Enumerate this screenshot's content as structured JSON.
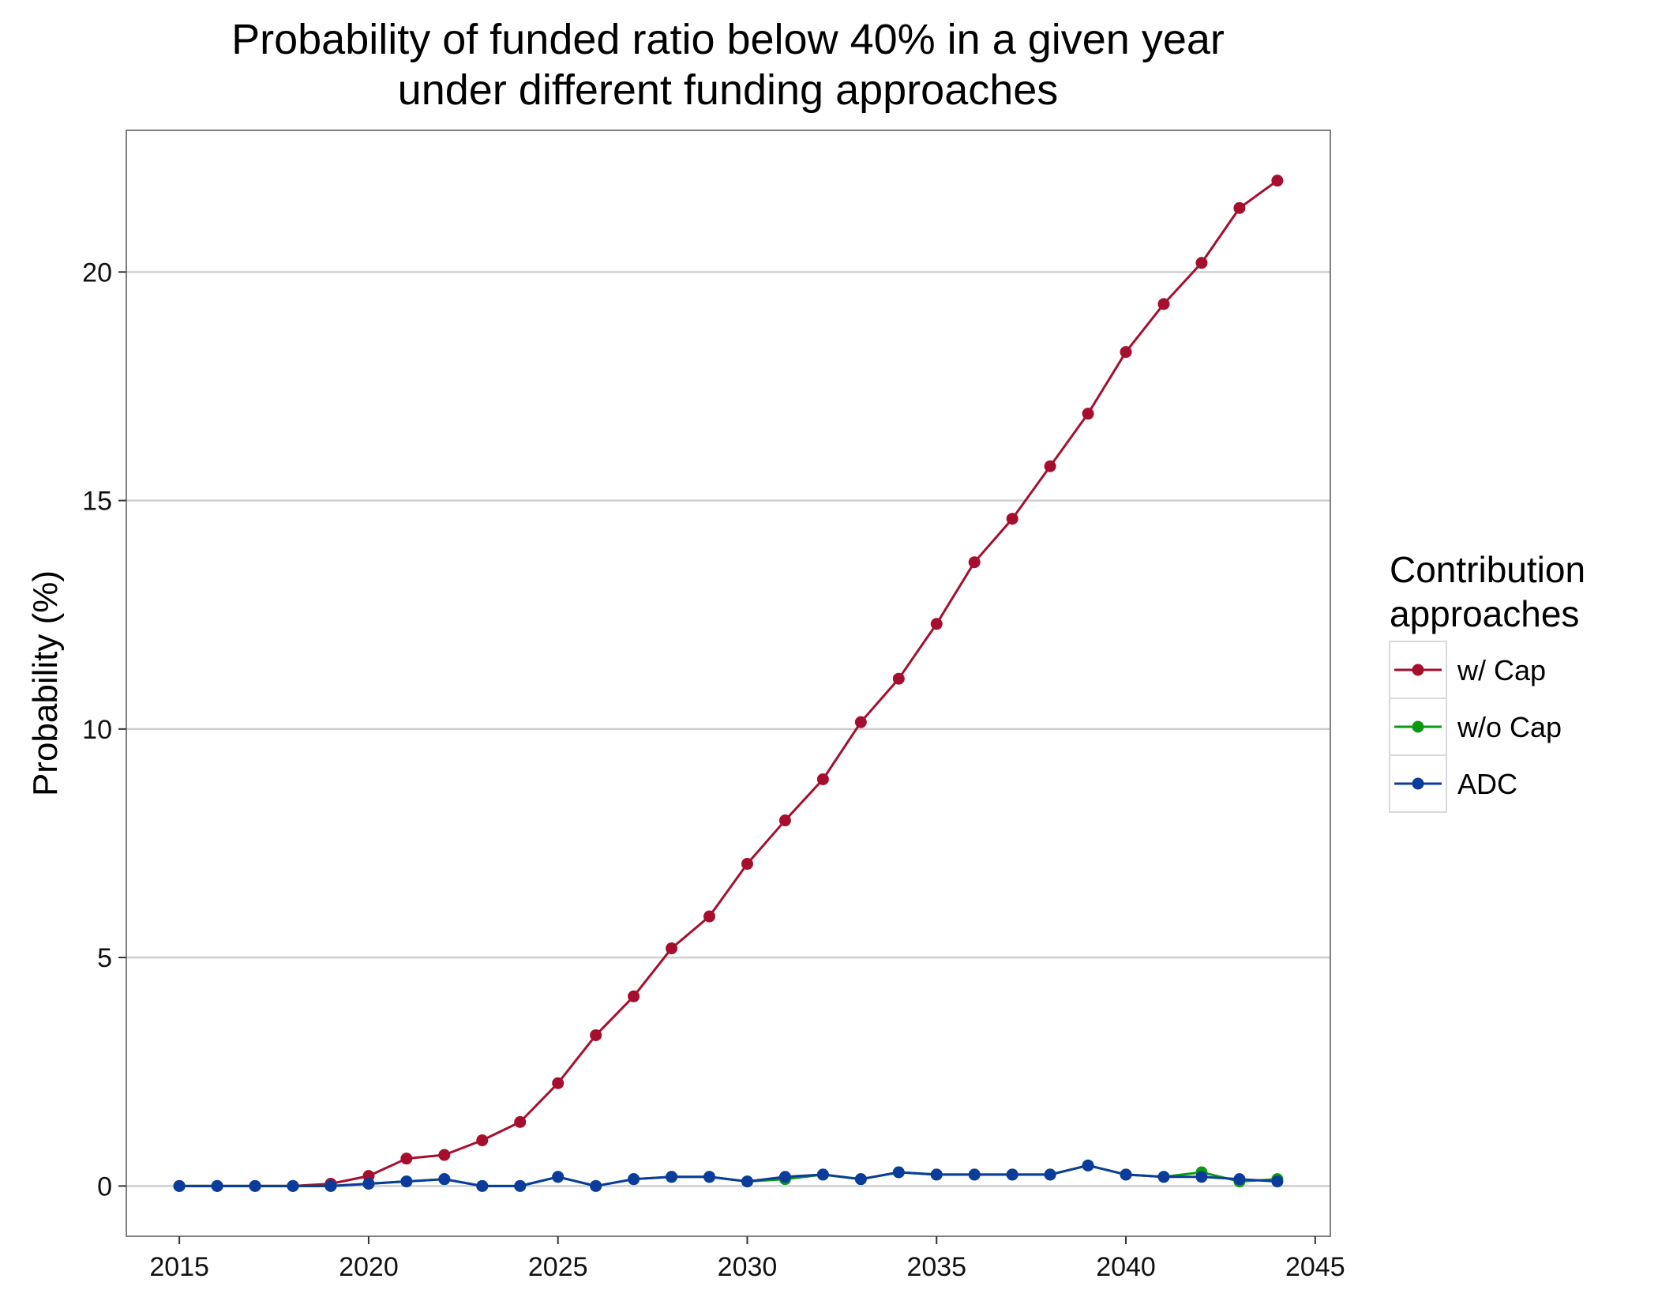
{
  "chart_data": {
    "type": "line",
    "title_line1": "Probability of funded ratio below 40% in a given year",
    "title_line2": "under different funding approaches",
    "xlabel": "",
    "ylabel": "Probability (%)",
    "xlim": [
      2013.6,
      2045.4
    ],
    "ylim": [
      -1.1,
      23.1
    ],
    "x_ticks": [
      2015,
      2020,
      2025,
      2030,
      2035,
      2040,
      2045
    ],
    "y_ticks": [
      0,
      5,
      10,
      15,
      20
    ],
    "grid": true,
    "legend_position": "right",
    "legend_title_line1": "Contribution",
    "legend_title_line2": "approaches",
    "x": [
      2015,
      2016,
      2017,
      2018,
      2019,
      2020,
      2021,
      2022,
      2023,
      2024,
      2025,
      2026,
      2027,
      2028,
      2029,
      2030,
      2031,
      2032,
      2033,
      2034,
      2035,
      2036,
      2037,
      2038,
      2039,
      2040,
      2041,
      2042,
      2043,
      2044
    ],
    "series": [
      {
        "name": "w/ Cap",
        "color": "#a50f2d",
        "values": [
          0,
          0,
          0,
          0,
          0.05,
          0.22,
          0.6,
          0.68,
          1.0,
          1.4,
          2.25,
          3.3,
          4.15,
          5.2,
          5.9,
          7.05,
          8.0,
          8.9,
          10.15,
          11.1,
          12.3,
          13.65,
          14.6,
          15.75,
          16.9,
          18.25,
          19.3,
          20.2,
          21.4,
          22.0
        ]
      },
      {
        "name": "w/o Cap",
        "color": "#0a9a14",
        "values": [
          0,
          0,
          0,
          0,
          0,
          0.05,
          0.1,
          0.15,
          0,
          0,
          0.2,
          0,
          0.15,
          0.2,
          0.2,
          0.1,
          0.15,
          0.25,
          0.15,
          0.3,
          0.25,
          0.25,
          0.25,
          0.25,
          0.45,
          0.25,
          0.2,
          0.3,
          0.1,
          0.15
        ]
      },
      {
        "name": "ADC",
        "color": "#0b3c9c",
        "values": [
          0,
          0,
          0,
          0,
          0,
          0.05,
          0.1,
          0.15,
          0,
          0,
          0.2,
          0,
          0.15,
          0.2,
          0.2,
          0.1,
          0.2,
          0.25,
          0.15,
          0.3,
          0.25,
          0.25,
          0.25,
          0.25,
          0.45,
          0.25,
          0.2,
          0.2,
          0.15,
          0.1
        ]
      }
    ]
  }
}
